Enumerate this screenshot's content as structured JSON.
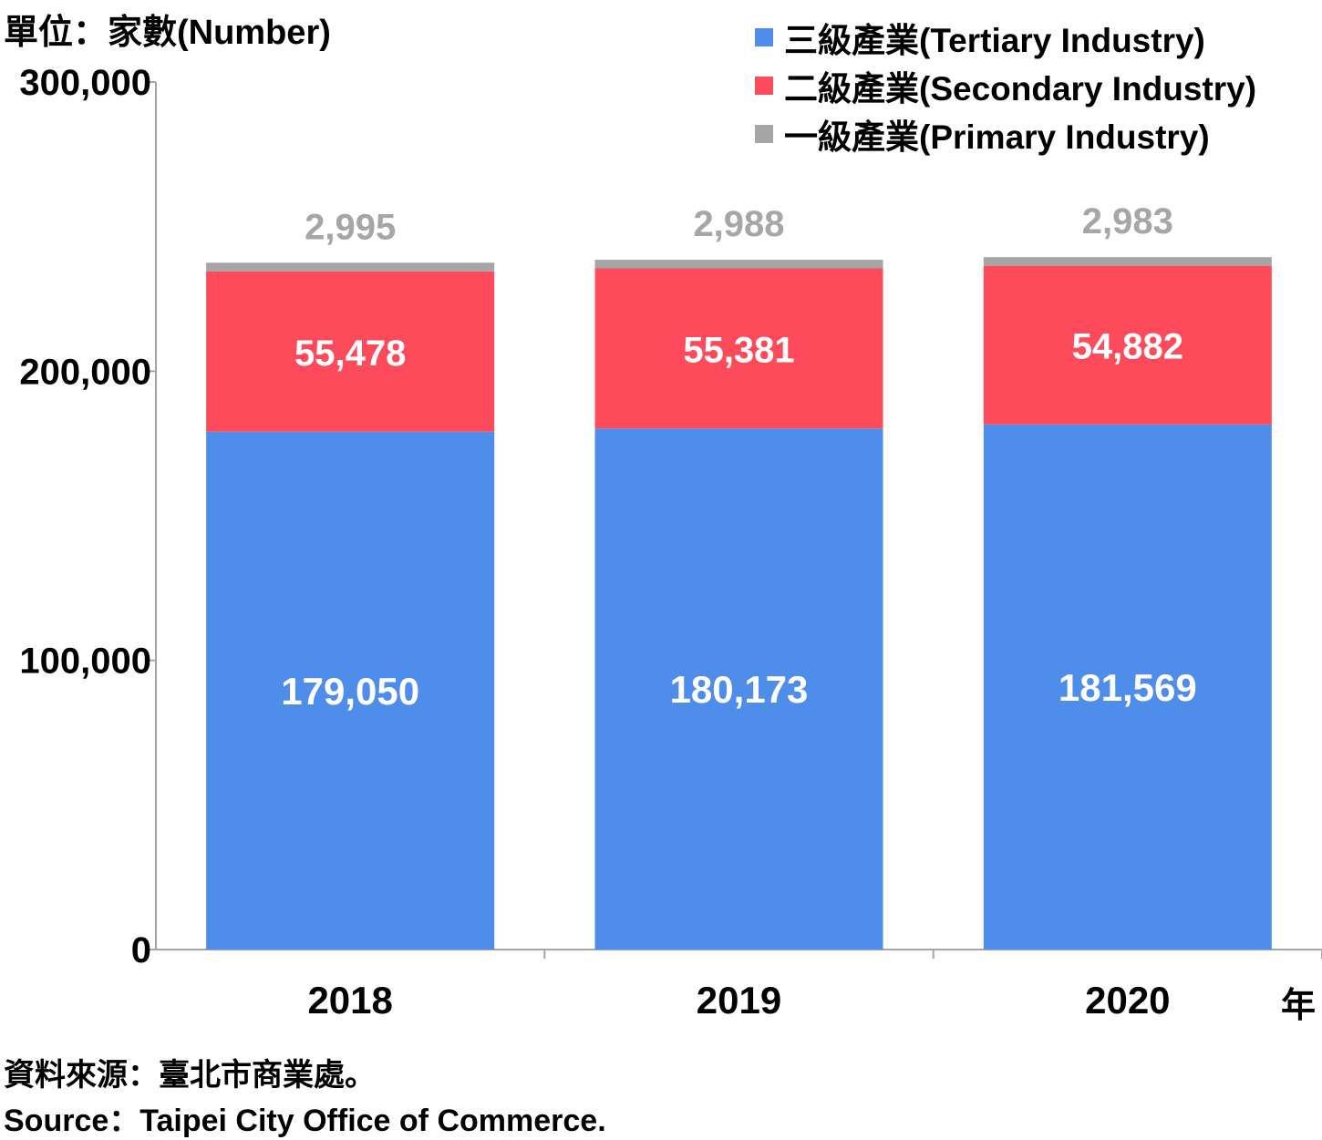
{
  "unit_label": "單位：家數(Number)",
  "x_suffix": "年",
  "source_zh": "資料來源：臺北市商業處。",
  "source_en": "Source：Taipei City Office of Commerce.",
  "colors": {
    "tertiary": "#4f8dea",
    "secondary": "#fe4b5b",
    "primary": "#a6a6a6",
    "axis": "#a6a6a6"
  },
  "legend": [
    {
      "key": "tertiary",
      "label": "三級產業(Tertiary Industry)"
    },
    {
      "key": "secondary",
      "label": "二級產業(Secondary Industry)"
    },
    {
      "key": "primary",
      "label": "一級產業(Primary Industry)"
    }
  ],
  "chart_data": {
    "type": "bar",
    "stacked": true,
    "categories": [
      "2018",
      "2019",
      "2020"
    ],
    "series": [
      {
        "key": "tertiary",
        "name": "三級產業(Tertiary Industry)",
        "values": [
          179050,
          180173,
          181569
        ],
        "labels": [
          "179,050",
          "180,173",
          "181,569"
        ]
      },
      {
        "key": "secondary",
        "name": "二級產業(Secondary Industry)",
        "values": [
          55478,
          55381,
          54882
        ],
        "labels": [
          "55,478",
          "55,381",
          "54,882"
        ]
      },
      {
        "key": "primary",
        "name": "一級產業(Primary Industry)",
        "values": [
          2995,
          2988,
          2983
        ],
        "labels": [
          "2,995",
          "2,988",
          "2,983"
        ]
      }
    ],
    "ylim": [
      0,
      300000
    ],
    "yticks": [
      0,
      100000,
      200000,
      300000
    ],
    "ytick_labels": [
      "0",
      "100,000",
      "200,000",
      "300,000"
    ],
    "xlabel": "年",
    "ylabel": "單位：家數(Number)",
    "grid": false,
    "legend_position": "top-right"
  }
}
